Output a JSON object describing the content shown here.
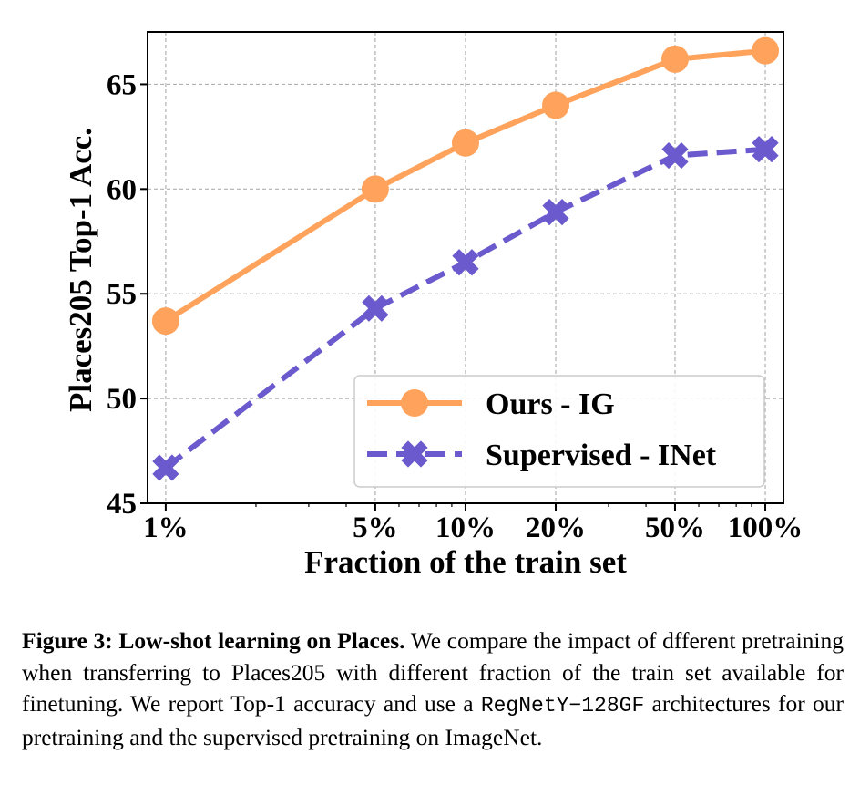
{
  "chart_data": {
    "type": "line",
    "xlabel": "Fraction of the train set",
    "ylabel": "Places205 Top-1 Acc.",
    "x_scale": "log",
    "x": [
      1,
      5,
      10,
      20,
      50,
      100
    ],
    "x_tick_labels": [
      "1%",
      "5%",
      "10%",
      "20%",
      "50%",
      "100%"
    ],
    "xlim": [
      0.87,
      115
    ],
    "ylim": [
      45,
      67.5
    ],
    "y_ticks": [
      45,
      50,
      55,
      60,
      65
    ],
    "grid": true,
    "legend_position": "lower-right",
    "series": [
      {
        "name": "Ours - IG",
        "values": [
          53.7,
          60.0,
          62.2,
          64.0,
          66.2,
          66.6
        ],
        "color": "#FFA35C",
        "line_style": "solid",
        "marker": "circle"
      },
      {
        "name": "Supervised - INet",
        "values": [
          46.7,
          54.3,
          56.5,
          58.9,
          61.6,
          61.9
        ],
        "color": "#6A5ACD",
        "line_style": "dashed",
        "marker": "x"
      }
    ]
  },
  "caption": {
    "label": "Figure 3:",
    "title": "Low-shot learning on Places.",
    "text_before_code": "We compare the impact of dfferent pretraining when transferring to Places205 with different fraction of the train set available for finetuning. We report Top-1 accuracy and use a",
    "code": "RegNetY−128GF",
    "text_after_code": "architectures for our pretraining and the supervised pretraining on ImageNet."
  }
}
